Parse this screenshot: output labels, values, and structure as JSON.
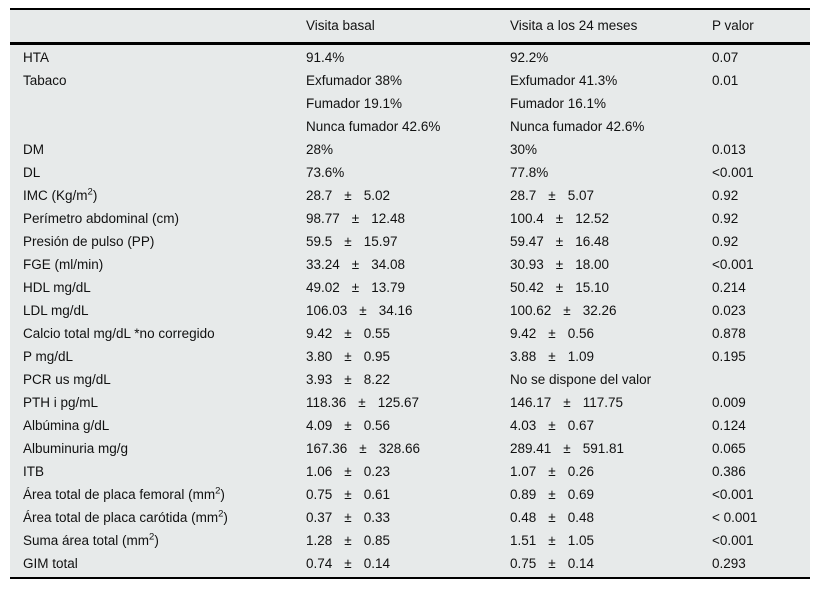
{
  "colors": {
    "table_bg": "#e7eaea",
    "rule": "#000000",
    "text": "#111111"
  },
  "header": {
    "columns": [
      {
        "label": ""
      },
      {
        "label": "Visita basal"
      },
      {
        "label": "Visita a los 24 meses"
      },
      {
        "label": "P valor"
      }
    ]
  },
  "rows": [
    {
      "label": {
        "text": "HTA"
      },
      "basal": {
        "text": "91.4%"
      },
      "m24": {
        "text": "92.2%"
      },
      "p": {
        "text": "0.07"
      }
    },
    {
      "label": {
        "text": "Tabaco"
      },
      "basal": {
        "text": "Exfumador 38%"
      },
      "m24": {
        "text": "Exfumador 41.3%"
      },
      "p": {
        "text": "0.01"
      }
    },
    {
      "label": {
        "text": ""
      },
      "basal": {
        "text": "Fumador 19.1%"
      },
      "m24": {
        "text": "Fumador 16.1%"
      },
      "p": {
        "text": ""
      }
    },
    {
      "label": {
        "text": ""
      },
      "basal": {
        "text": "Nunca fumador 42.6%"
      },
      "m24": {
        "text": "Nunca fumador 42.6%"
      },
      "p": {
        "text": ""
      }
    },
    {
      "label": {
        "text": "DM"
      },
      "basal": {
        "text": "28%"
      },
      "m24": {
        "text": "30%"
      },
      "p": {
        "text": "0.013"
      }
    },
    {
      "label": {
        "text": "DL"
      },
      "basal": {
        "text": "73.6%"
      },
      "m24": {
        "text": "77.8%"
      },
      "p": {
        "text": "<0.001"
      }
    },
    {
      "label": {
        "text": "IMC (Kg/m",
        "sup": "2",
        "after": ")"
      },
      "basal": {
        "mean": "28.7",
        "pm": "±",
        "sd": "5.02"
      },
      "m24": {
        "mean": "28.7",
        "pm": "±",
        "sd": "5.07"
      },
      "p": {
        "text": "0.92"
      }
    },
    {
      "label": {
        "text": "Perímetro abdominal (cm)"
      },
      "basal": {
        "mean": "98.77",
        "pm": "±",
        "sd": "12.48"
      },
      "m24": {
        "mean": "100.4",
        "pm": "±",
        "sd": "12.52"
      },
      "p": {
        "text": "0.92"
      }
    },
    {
      "label": {
        "text": "Presión de pulso (PP)"
      },
      "basal": {
        "mean": "59.5",
        "pm": "±",
        "sd": "15.97"
      },
      "m24": {
        "mean": "59.47",
        "pm": "±",
        "sd": "16.48"
      },
      "p": {
        "text": "0.92"
      }
    },
    {
      "label": {
        "text": "FGE (ml/min)"
      },
      "basal": {
        "mean": "33.24",
        "pm": "±",
        "sd": "34.08"
      },
      "m24": {
        "mean": "30.93",
        "pm": "±",
        "sd": "18.00"
      },
      "p": {
        "text": "<0.001"
      }
    },
    {
      "label": {
        "text": "HDL mg/dL"
      },
      "basal": {
        "mean": "49.02",
        "pm": "±",
        "sd": "13.79"
      },
      "m24": {
        "mean": "50.42",
        "pm": "±",
        "sd": "15.10"
      },
      "p": {
        "text": "0.214"
      }
    },
    {
      "label": {
        "text": "LDL mg/dL"
      },
      "basal": {
        "mean": "106.03",
        "pm": "±",
        "sd": "34.16"
      },
      "m24": {
        "mean": "100.62",
        "pm": "±",
        "sd": "32.26"
      },
      "p": {
        "text": "0.023"
      }
    },
    {
      "label": {
        "text": "Calcio total mg/dL *no corregido"
      },
      "basal": {
        "mean": "9.42",
        "pm": "±",
        "sd": "0.55"
      },
      "m24": {
        "mean": "9.42",
        "pm": "±",
        "sd": "0.56"
      },
      "p": {
        "text": "0.878"
      }
    },
    {
      "label": {
        "text": "P mg/dL"
      },
      "basal": {
        "mean": "3.80",
        "pm": "±",
        "sd": "0.95"
      },
      "m24": {
        "mean": "3.88",
        "pm": "±",
        "sd": "1.09"
      },
      "p": {
        "text": "0.195"
      }
    },
    {
      "label": {
        "text": "PCR us mg/dL"
      },
      "basal": {
        "mean": "3.93",
        "pm": "±",
        "sd": "8.22"
      },
      "m24": {
        "text": "No se dispone del valor"
      },
      "p": {
        "text": ""
      }
    },
    {
      "label": {
        "text": "PTH i pg/mL"
      },
      "basal": {
        "mean": "118.36",
        "pm": "±",
        "sd": "125.67"
      },
      "m24": {
        "mean": "146.17",
        "pm": "±",
        "sd": "117.75"
      },
      "p": {
        "text": "0.009"
      }
    },
    {
      "label": {
        "text": "Albúmina g/dL"
      },
      "basal": {
        "mean": "4.09",
        "pm": "±",
        "sd": "0.56"
      },
      "m24": {
        "mean": "4.03",
        "pm": "±",
        "sd": "0.67"
      },
      "p": {
        "text": "0.124"
      }
    },
    {
      "label": {
        "text": "Albuminuria mg/g"
      },
      "basal": {
        "mean": "167.36",
        "pm": "±",
        "sd": "328.66"
      },
      "m24": {
        "mean": "289.41",
        "pm": "±",
        "sd": "591.81"
      },
      "p": {
        "text": "0.065"
      }
    },
    {
      "label": {
        "text": "ITB"
      },
      "basal": {
        "mean": "1.06",
        "pm": "±",
        "sd": "0.23"
      },
      "m24": {
        "mean": "1.07",
        "pm": "±",
        "sd": "0.26"
      },
      "p": {
        "text": "0.386"
      }
    },
    {
      "label": {
        "text": "Área total de placa femoral (mm",
        "sup": "2",
        "after": ")"
      },
      "basal": {
        "mean": "0.75",
        "pm": "±",
        "sd": "0.61"
      },
      "m24": {
        "mean": "0.89",
        "pm": "±",
        "sd": "0.69"
      },
      "p": {
        "text": "<0.001"
      }
    },
    {
      "label": {
        "text": "Área total de placa carótida (mm",
        "sup": "2",
        "after": ")"
      },
      "basal": {
        "mean": "0.37",
        "pm": "±",
        "sd": "0.33"
      },
      "m24": {
        "mean": "0.48",
        "pm": "±",
        "sd": "0.48"
      },
      "p": {
        "text": "< 0.001"
      }
    },
    {
      "label": {
        "text": "Suma área total (mm",
        "sup": "2",
        "after": ")"
      },
      "basal": {
        "mean": "1.28",
        "pm": "±",
        "sd": "0.85"
      },
      "m24": {
        "mean": "1.51",
        "pm": "±",
        "sd": "1.05"
      },
      "p": {
        "text": "<0.001"
      }
    },
    {
      "label": {
        "text": "GIM total"
      },
      "basal": {
        "mean": "0.74",
        "pm": "±",
        "sd": "0.14"
      },
      "m24": {
        "mean": "0.75",
        "pm": "±",
        "sd": "0.14"
      },
      "p": {
        "text": "0.293"
      }
    }
  ]
}
